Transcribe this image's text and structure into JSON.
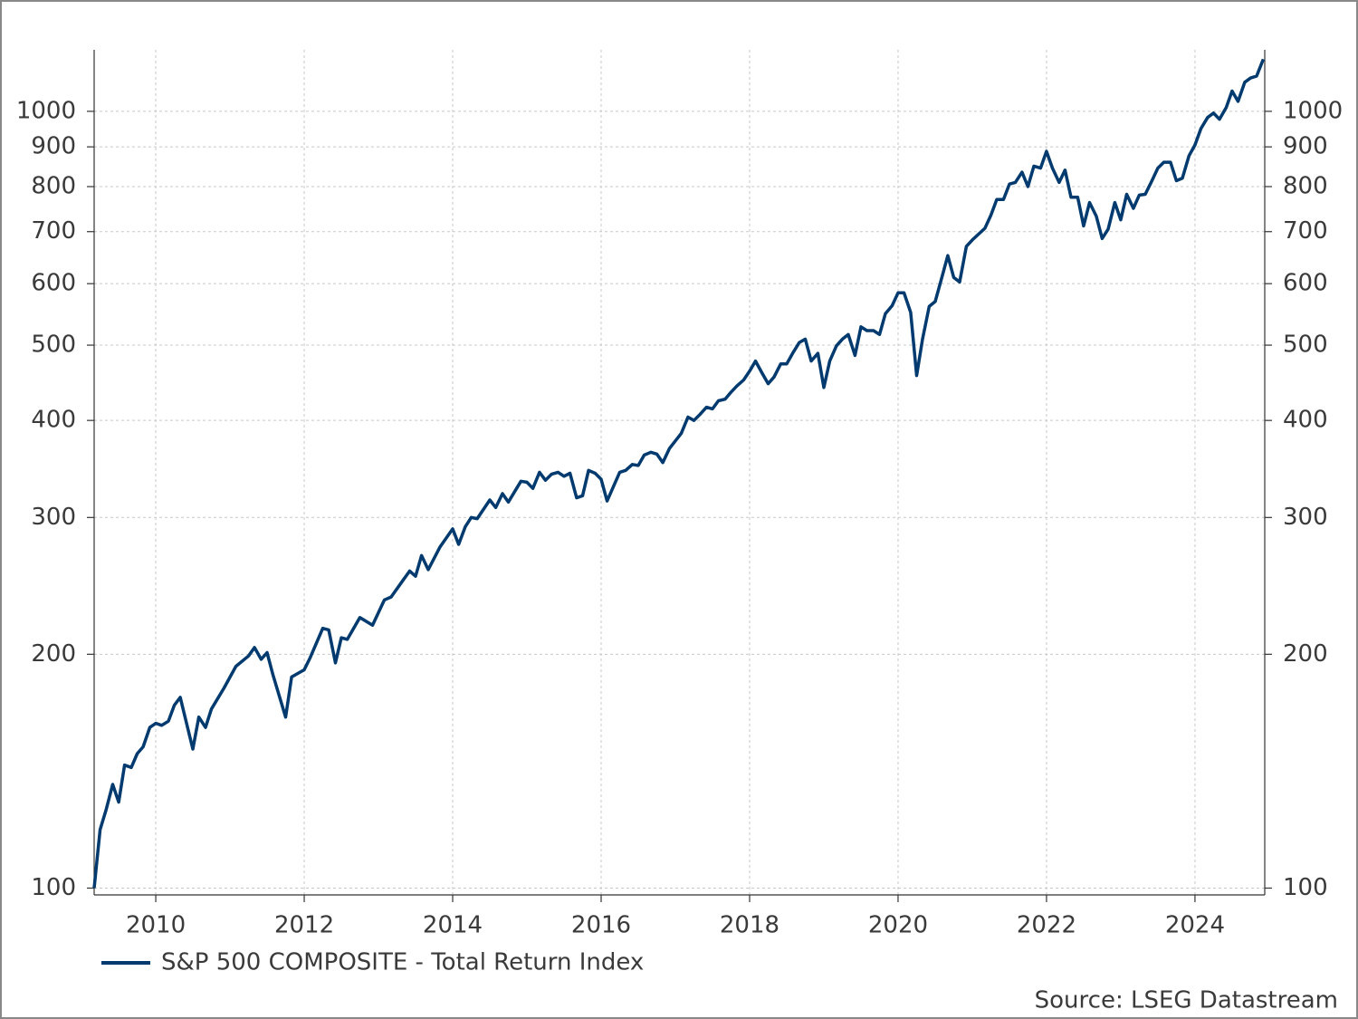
{
  "chart_data": {
    "type": "line",
    "log_y": true,
    "grid": true,
    "legend": "bottom-left",
    "source": "Source: LSEG Datastream",
    "xlim": [
      2009.17,
      2024.94
    ],
    "xticks": [
      2010,
      2012,
      2014,
      2016,
      2018,
      2020,
      2022,
      2024
    ],
    "ylim": [
      98,
      1200
    ],
    "yticks": [
      100,
      200,
      300,
      400,
      500,
      600,
      700,
      800,
      900,
      1000
    ],
    "x": [
      2009.17,
      2009.25,
      2009.33,
      2009.42,
      2009.5,
      2009.58,
      2009.67,
      2009.75,
      2009.83,
      2009.92,
      2010.0,
      2010.08,
      2010.17,
      2010.25,
      2010.33,
      2010.5,
      2010.58,
      2010.67,
      2010.75,
      2010.92,
      2011.08,
      2011.25,
      2011.33,
      2011.42,
      2011.5,
      2011.58,
      2011.75,
      2011.83,
      2012.0,
      2012.08,
      2012.25,
      2012.33,
      2012.42,
      2012.5,
      2012.58,
      2012.75,
      2012.92,
      2013.08,
      2013.17,
      2013.33,
      2013.42,
      2013.5,
      2013.58,
      2013.67,
      2013.83,
      2014.0,
      2014.08,
      2014.17,
      2014.25,
      2014.33,
      2014.5,
      2014.58,
      2014.67,
      2014.75,
      2014.92,
      2015.0,
      2015.08,
      2015.17,
      2015.25,
      2015.33,
      2015.42,
      2015.5,
      2015.58,
      2015.67,
      2015.75,
      2015.83,
      2015.92,
      2016.0,
      2016.08,
      2016.25,
      2016.33,
      2016.42,
      2016.5,
      2016.58,
      2016.67,
      2016.75,
      2016.83,
      2016.92,
      2017.08,
      2017.17,
      2017.25,
      2017.33,
      2017.42,
      2017.5,
      2017.58,
      2017.67,
      2017.75,
      2017.83,
      2017.92,
      2018.0,
      2018.08,
      2018.17,
      2018.25,
      2018.33,
      2018.42,
      2018.5,
      2018.58,
      2018.67,
      2018.75,
      2018.83,
      2018.92,
      2019.0,
      2019.08,
      2019.17,
      2019.25,
      2019.33,
      2019.42,
      2019.5,
      2019.58,
      2019.67,
      2019.75,
      2019.83,
      2019.92,
      2020.0,
      2020.08,
      2020.17,
      2020.25,
      2020.33,
      2020.42,
      2020.5,
      2020.58,
      2020.67,
      2020.75,
      2020.83,
      2020.92,
      2021.0,
      2021.17,
      2021.25,
      2021.33,
      2021.42,
      2021.5,
      2021.58,
      2021.67,
      2021.75,
      2021.83,
      2021.92,
      2022.0,
      2022.08,
      2022.17,
      2022.25,
      2022.33,
      2022.42,
      2022.5,
      2022.58,
      2022.67,
      2022.75,
      2022.83,
      2022.92,
      2023.0,
      2023.08,
      2023.17,
      2023.25,
      2023.33,
      2023.42,
      2023.5,
      2023.58,
      2023.67,
      2023.75,
      2023.83,
      2023.92,
      2024.0,
      2024.08,
      2024.17,
      2024.25,
      2024.33,
      2024.42,
      2024.5,
      2024.58,
      2024.67,
      2024.75,
      2024.83,
      2024.92
    ],
    "series": [
      {
        "name": "S&P 500 COMPOSITE - Total Return Index",
        "color": "#003a6e",
        "values": [
          100,
          119,
          126,
          136,
          129,
          144,
          143,
          149,
          152,
          161,
          163,
          162,
          164,
          172,
          176,
          151,
          166,
          161,
          170,
          181,
          193,
          199,
          204,
          197,
          201,
          188,
          166,
          187,
          191,
          198,
          216,
          215,
          195,
          210,
          209,
          223,
          218,
          235,
          237,
          249,
          256,
          252,
          268,
          257,
          275,
          290,
          277,
          292,
          300,
          299,
          316,
          309,
          322,
          314,
          334,
          333,
          327,
          343,
          335,
          341,
          343,
          339,
          342,
          318,
          320,
          345,
          342,
          336,
          315,
          343,
          345,
          351,
          350,
          361,
          364,
          362,
          353,
          368,
          385,
          404,
          400,
          407,
          416,
          414,
          424,
          426,
          435,
          443,
          451,
          463,
          477,
          460,
          446,
          455,
          473,
          473,
          488,
          504,
          509,
          477,
          488,
          441,
          477,
          499,
          509,
          516,
          485,
          528,
          522,
          522,
          516,
          549,
          562,
          584,
          584,
          551,
          457,
          509,
          561,
          569,
          606,
          652,
          611,
          603,
          670,
          683,
          707,
          735,
          770,
          770,
          806,
          810,
          835,
          800,
          850,
          845,
          888,
          845,
          810,
          840,
          775,
          775,
          712,
          763,
          733,
          686,
          705,
          763,
          725,
          782,
          750,
          780,
          782,
          814,
          845,
          860,
          860,
          814,
          820,
          877,
          905,
          950,
          982,
          995,
          977,
          1011,
          1062,
          1030,
          1090,
          1104,
          1110,
          1167
        ]
      }
    ]
  }
}
